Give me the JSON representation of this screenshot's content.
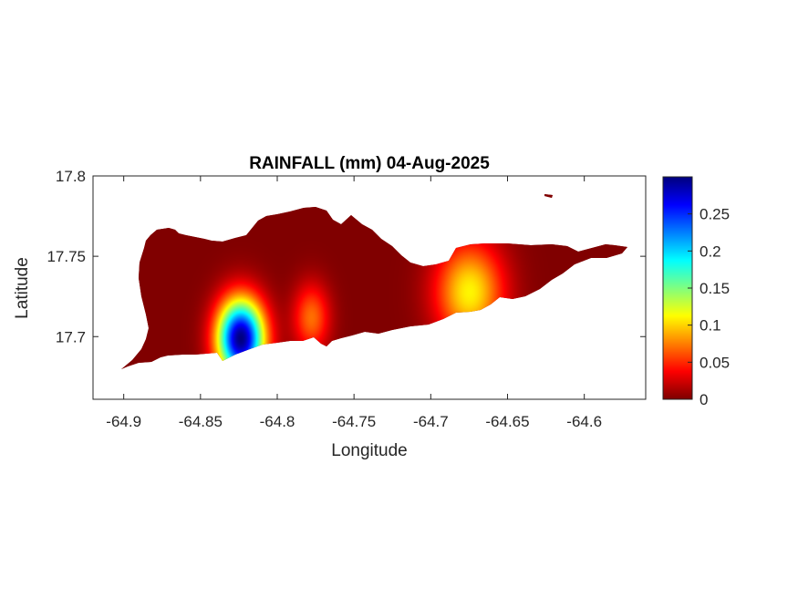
{
  "chart_data": {
    "type": "heatmap",
    "title": "RAINFALL (mm) 04-Aug-2025",
    "xlabel": "Longitude",
    "ylabel": "Latitude",
    "xlim": [
      -64.92,
      -64.56
    ],
    "ylim": [
      17.661,
      17.8
    ],
    "xticks": [
      -64.9,
      -64.85,
      -64.8,
      -64.75,
      -64.7,
      -64.65,
      -64.6
    ],
    "xtick_labels": [
      "-64.9",
      "-64.85",
      "-64.8",
      "-64.75",
      "-64.7",
      "-64.65",
      "-64.6"
    ],
    "yticks": [
      17.7,
      17.75,
      17.8
    ],
    "ytick_labels": [
      "17.7",
      "17.75",
      "17.8"
    ],
    "colorbar": {
      "colormap": "jet",
      "range": [
        0,
        0.3
      ],
      "ticks": [
        0,
        0.05,
        0.1,
        0.15,
        0.2,
        0.25
      ],
      "tick_labels": [
        "0",
        "0.05",
        "0.1",
        "0.15",
        "0.2",
        "0.25"
      ]
    },
    "rainfall_peaks": [
      {
        "lon": -64.824,
        "lat": 17.699,
        "value": 0.3
      },
      {
        "lon": -64.778,
        "lat": 17.712,
        "value": 0.07
      },
      {
        "lon": -64.675,
        "lat": 17.728,
        "value": 0.11
      }
    ],
    "grid": false,
    "colors": {
      "background": "#ffffff",
      "axis": "#262626",
      "zero_rain": "#800000"
    }
  }
}
